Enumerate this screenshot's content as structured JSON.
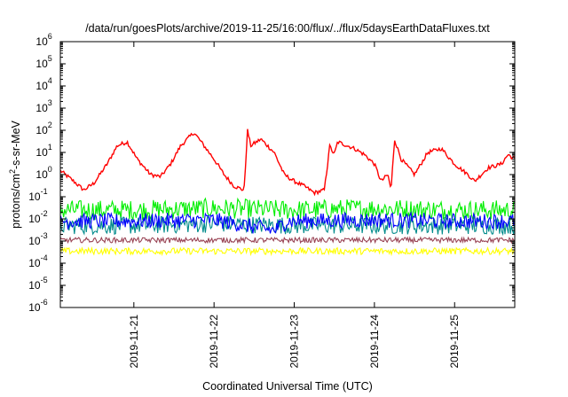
{
  "chart_data": {
    "type": "line",
    "title": "/data/run/goesPlots/archive/2019-11-25/16:00/flux/../flux/5daysEarthDataFluxes.txt",
    "xlabel": "Coordinated Universal Time (UTC)",
    "ylabel": "protons/cm²-s-sr-MeV",
    "y_scale": "log",
    "ylim": [
      1e-06,
      1000000.0
    ],
    "xlim": [
      "2019-11-20 02:00",
      "2019-11-25 18:00"
    ],
    "grid": false,
    "legend": "none",
    "x_ticks": [
      {
        "label": "2019-11-21",
        "value": "2019-11-21 00:00"
      },
      {
        "label": "2019-11-22",
        "value": "2019-11-22 00:00"
      },
      {
        "label": "2019-11-23",
        "value": "2019-11-23 00:00"
      },
      {
        "label": "2019-11-24",
        "value": "2019-11-24 00:00"
      },
      {
        "label": "2019-11-25",
        "value": "2019-11-25 00:00"
      }
    ],
    "y_ticks": [
      {
        "base": "10",
        "exp": "-6",
        "value": 1e-06
      },
      {
        "base": "10",
        "exp": "-5",
        "value": 1e-05
      },
      {
        "base": "10",
        "exp": "-4",
        "value": 0.0001
      },
      {
        "base": "10",
        "exp": "-3",
        "value": 0.001
      },
      {
        "base": "10",
        "exp": "-2",
        "value": 0.01
      },
      {
        "base": "10",
        "exp": "-1",
        "value": 0.1
      },
      {
        "base": "10",
        "exp": "0",
        "value": 1
      },
      {
        "base": "10",
        "exp": "1",
        "value": 10
      },
      {
        "base": "10",
        "exp": "2",
        "value": 100
      },
      {
        "base": "10",
        "exp": "3",
        "value": 1000
      },
      {
        "base": "10",
        "exp": "4",
        "value": 10000
      },
      {
        "base": "10",
        "exp": "5",
        "value": 100000
      },
      {
        "base": "10",
        "exp": "6",
        "value": 1000000
      }
    ],
    "series": [
      {
        "color": "#ff0000",
        "x": [
          "2019-11-20 02:00",
          "2019-11-20 06:00",
          "2019-11-20 09:00",
          "2019-11-20 12:00",
          "2019-11-20 16:00",
          "2019-11-20 19:00",
          "2019-11-20 22:00",
          "2019-11-21 01:00",
          "2019-11-21 05:00",
          "2019-11-21 08:00",
          "2019-11-21 11:00",
          "2019-11-21 14:00",
          "2019-11-21 18:00",
          "2019-11-21 21:00",
          "2019-11-22 00:00",
          "2019-11-22 03:00",
          "2019-11-22 06:00",
          "2019-11-22 09:00",
          "2019-11-22 10:00",
          "2019-11-22 11:00",
          "2019-11-22 14:00",
          "2019-11-22 18:00",
          "2019-11-22 21:00",
          "2019-11-23 00:00",
          "2019-11-23 03:00",
          "2019-11-23 06:00",
          "2019-11-23 09:00",
          "2019-11-23 10:00",
          "2019-11-23 10:30",
          "2019-11-23 12:00",
          "2019-11-23 13:00",
          "2019-11-23 18:00",
          "2019-11-23 21:00",
          "2019-11-24 00:00",
          "2019-11-24 02:00",
          "2019-11-24 04:00",
          "2019-11-24 05:00",
          "2019-11-24 06:00",
          "2019-11-24 08:00",
          "2019-11-24 12:00",
          "2019-11-24 16:00",
          "2019-11-24 20:00",
          "2019-11-25 00:00",
          "2019-11-25 04:00",
          "2019-11-25 06:00",
          "2019-11-25 10:00",
          "2019-11-25 14:00",
          "2019-11-25 16:00",
          "2019-11-25 18:00"
        ],
        "y": [
          1.5,
          0.5,
          0.2,
          0.4,
          3,
          20,
          30,
          5,
          1,
          0.8,
          3,
          20,
          80,
          20,
          5,
          1,
          0.3,
          0.2,
          100,
          20,
          40,
          10,
          1,
          0.5,
          0.3,
          0.15,
          0.2,
          3,
          20,
          8,
          30,
          15,
          8,
          3,
          0.5,
          1,
          0.2,
          40,
          5,
          1,
          10,
          15,
          3,
          1,
          0.5,
          2,
          3,
          8,
          5
        ],
        "noise": 0.09
      },
      {
        "color": "#00ee00",
        "x": [
          "2019-11-20 02:00",
          "2019-11-21 00:00",
          "2019-11-22 00:00",
          "2019-11-23 00:00",
          "2019-11-24 00:00",
          "2019-11-25 00:00",
          "2019-11-25 18:00"
        ],
        "y": [
          0.025,
          0.025,
          0.03,
          0.025,
          0.03,
          0.025,
          0.025
        ],
        "noise": 0.45
      },
      {
        "color": "#008b8b",
        "x": [
          "2019-11-20 02:00",
          "2019-11-21 00:00",
          "2019-11-22 00:00",
          "2019-11-23 00:00",
          "2019-11-24 00:00",
          "2019-11-25 00:00",
          "2019-11-25 18:00"
        ],
        "y": [
          0.005,
          0.005,
          0.006,
          0.005,
          0.005,
          0.005,
          0.005
        ],
        "noise": 0.4
      },
      {
        "color": "#0000ff",
        "x": [
          "2019-11-20 02:00",
          "2019-11-21 00:00",
          "2019-11-22 00:00",
          "2019-11-22 18:00",
          "2019-11-22 22:00",
          "2019-11-23 00:00",
          "2019-11-24 00:00",
          "2019-11-25 00:00",
          "2019-11-25 18:00"
        ],
        "y": [
          0.008,
          0.008,
          0.009,
          0.003,
          0.008,
          0.008,
          0.009,
          0.008,
          0.008
        ],
        "noise": 0.35
      },
      {
        "color": "#ffff00",
        "x": [
          "2019-11-20 02:00",
          "2019-11-22 00:00",
          "2019-11-24 00:00",
          "2019-11-25 18:00"
        ],
        "y": [
          0.00035,
          0.00035,
          0.00035,
          0.00035
        ],
        "noise": 0.15
      },
      {
        "color": "#994455",
        "x": [
          "2019-11-20 02:00",
          "2019-11-22 00:00",
          "2019-11-24 00:00",
          "2019-11-25 18:00"
        ],
        "y": [
          0.0011,
          0.0011,
          0.0011,
          0.0011
        ],
        "noise": 0.12
      }
    ]
  }
}
